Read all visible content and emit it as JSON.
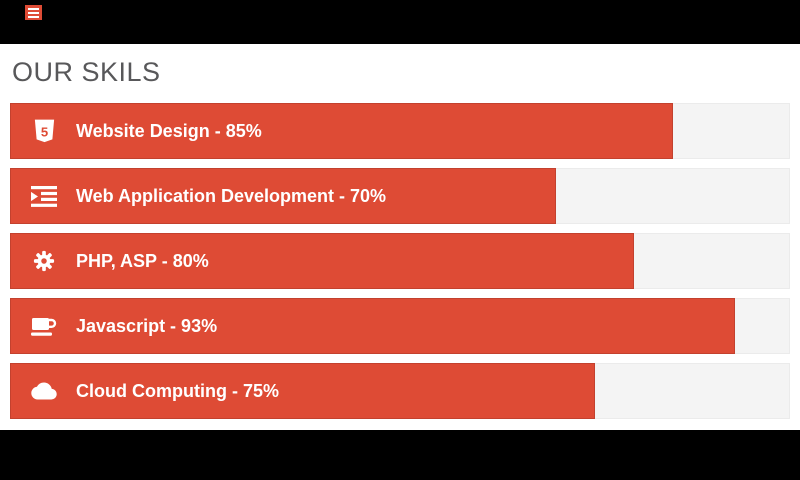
{
  "colors": {
    "accent_red": "#DE4B35",
    "track_gray": "#F4F4F4",
    "heading_gray": "#58585A",
    "band_black": "#000000",
    "bar_text_white": "#FFFFFF"
  },
  "header": {
    "menu_icon": "hamburger-menu-icon"
  },
  "section": {
    "title": "OUR SKILS"
  },
  "skills": {
    "items": [
      {
        "name": "Website Design",
        "label": "Website Design - 85%",
        "percent": 85,
        "icon": "html5-icon"
      },
      {
        "name": "Web Application Development",
        "label": "Web Application Development - 70%",
        "percent": 70,
        "icon": "indent-icon"
      },
      {
        "name": "PHP, ASP",
        "label": "PHP, ASP - 80%",
        "percent": 80,
        "icon": "gear-icon"
      },
      {
        "name": "Javascript",
        "label": "Javascript - 93%",
        "percent": 93,
        "icon": "coffee-icon"
      },
      {
        "name": "Cloud Computing",
        "label": "Cloud Computing - 75%",
        "percent": 75,
        "icon": "cloud-icon"
      }
    ]
  },
  "chart_data": {
    "type": "bar",
    "orientation": "horizontal",
    "title": "OUR SKILS",
    "categories": [
      "Website Design",
      "Web Application Development",
      "PHP, ASP",
      "Javascript",
      "Cloud Computing"
    ],
    "values": [
      85,
      70,
      80,
      93,
      75
    ],
    "unit": "%",
    "xlim": [
      0,
      100
    ],
    "data_labels": [
      "Website Design - 85%",
      "Web Application Development - 70%",
      "PHP, ASP - 80%",
      "Javascript - 93%",
      "Cloud Computing - 75%"
    ],
    "bar_color": "#DE4B35",
    "track_color": "#F4F4F4",
    "grid": false,
    "legend": false,
    "axes_shown": false
  }
}
